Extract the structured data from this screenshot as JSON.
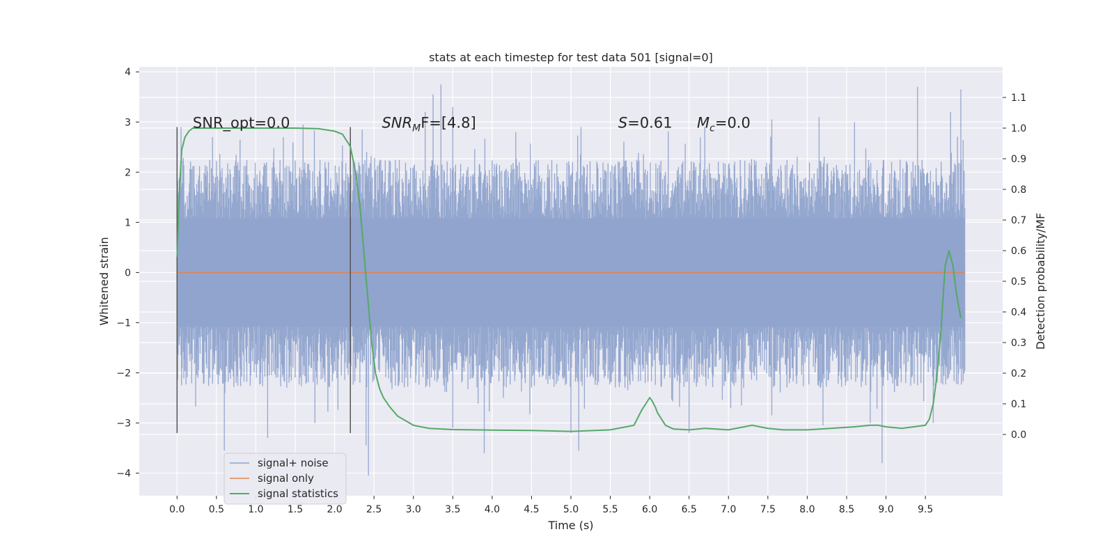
{
  "chart_data": {
    "type": "line",
    "title": "stats at each timestep for test data 501 [signal=0]",
    "xlabel": "Time (s)",
    "ylabel": "Whitened strain",
    "ylabel_right": "Detection probability/MF",
    "xlim": [
      -0.48,
      10.48
    ],
    "ylim": [
      -4.45,
      4.1
    ],
    "ylim_right": [
      -0.2,
      1.2
    ],
    "xticks": [
      "0.0",
      "0.5",
      "1.0",
      "1.5",
      "2.0",
      "2.5",
      "3.0",
      "3.5",
      "4.0",
      "4.5",
      "5.0",
      "5.5",
      "6.0",
      "6.5",
      "7.0",
      "7.5",
      "8.0",
      "8.5",
      "9.0",
      "9.5"
    ],
    "yticks": [
      "4",
      "3",
      "2",
      "1",
      "0",
      "−1",
      "−2",
      "−3",
      "−4"
    ],
    "yticks_right": [
      "1.1",
      "1.0",
      "0.9",
      "0.8",
      "0.7",
      "0.6",
      "0.5",
      "0.4",
      "0.3",
      "0.2",
      "0.1",
      "0.0"
    ],
    "grid": true,
    "legend_position": "lower-left",
    "annotations": [
      {
        "text": "SNR_opt=0.0",
        "x": 0.2,
        "y": 3.0
      },
      {
        "main": "SNR",
        "sub": "M",
        "rest": "F=[4.8]",
        "x": 2.6,
        "y": 3.0
      },
      {
        "main": "S",
        "rest": "=0.61",
        "x": 5.6,
        "y": 3.0
      },
      {
        "main": "M",
        "sub": "c",
        "rest": "=0.0",
        "x": 6.6,
        "y": 3.0
      }
    ],
    "vlines": [
      {
        "x": 0.0,
        "ymin": -3.2,
        "ymax": 2.9
      },
      {
        "x": 2.2,
        "ymin": -3.2,
        "ymax": 2.9
      }
    ],
    "series": [
      {
        "name": "signal+ noise",
        "axis": "left",
        "color": "#8fa3cc",
        "x_range": [
          0.0,
          10.0
        ],
        "y_band": [
          -4.0,
          3.75
        ],
        "peaks_high": [
          [
            0.05,
            2.9
          ],
          [
            0.45,
            2.7
          ],
          [
            0.8,
            2.65
          ],
          [
            1.6,
            2.95
          ],
          [
            2.35,
            2.85
          ],
          [
            3.15,
            3.2
          ],
          [
            3.25,
            3.55
          ],
          [
            3.35,
            3.75
          ],
          [
            3.5,
            3.3
          ],
          [
            4.3,
            2.8
          ],
          [
            6.7,
            2.9
          ],
          [
            7.55,
            3.05
          ],
          [
            8.15,
            3.1
          ],
          [
            8.6,
            3.0
          ],
          [
            9.4,
            3.7
          ],
          [
            9.82,
            3.2
          ],
          [
            9.95,
            3.65
          ]
        ],
        "peaks_low": [
          [
            0.6,
            -3.55
          ],
          [
            1.15,
            -3.3
          ],
          [
            1.75,
            -3.0
          ],
          [
            2.4,
            -3.45
          ],
          [
            2.43,
            -4.05
          ],
          [
            3.5,
            -3.1
          ],
          [
            3.9,
            -3.6
          ],
          [
            5.0,
            -3.2
          ],
          [
            5.1,
            -3.55
          ],
          [
            6.5,
            -3.2
          ],
          [
            8.2,
            -3.05
          ],
          [
            8.8,
            -3.0
          ],
          [
            8.95,
            -3.8
          ],
          [
            9.6,
            -3.0
          ]
        ]
      },
      {
        "name": "signal only",
        "axis": "left",
        "color": "#dd8452",
        "x": [
          0.0,
          10.0
        ],
        "y": [
          0.0,
          0.0
        ]
      },
      {
        "name": "signal statistics",
        "axis": "right",
        "color": "#55a868",
        "x": [
          0.0,
          0.03,
          0.06,
          0.1,
          0.15,
          0.2,
          0.3,
          0.5,
          1.0,
          1.5,
          1.8,
          2.0,
          2.1,
          2.2,
          2.27,
          2.32,
          2.37,
          2.42,
          2.47,
          2.52,
          2.57,
          2.62,
          2.7,
          2.8,
          3.0,
          3.2,
          3.5,
          4.0,
          4.5,
          5.0,
          5.5,
          5.8,
          5.9,
          5.95,
          6.0,
          6.03,
          6.07,
          6.1,
          6.2,
          6.3,
          6.5,
          6.7,
          7.0,
          7.2,
          7.3,
          7.5,
          7.7,
          8.0,
          8.3,
          8.6,
          8.8,
          8.9,
          9.0,
          9.2,
          9.5,
          9.55,
          9.6,
          9.65,
          9.7,
          9.75,
          9.8,
          9.85,
          9.9,
          9.95
        ],
        "y": [
          0.58,
          0.8,
          0.93,
          0.97,
          0.99,
          1.0,
          1.0,
          1.0,
          1.0,
          1.0,
          0.998,
          0.99,
          0.98,
          0.94,
          0.85,
          0.75,
          0.6,
          0.45,
          0.3,
          0.2,
          0.15,
          0.12,
          0.09,
          0.06,
          0.03,
          0.02,
          0.016,
          0.014,
          0.013,
          0.01,
          0.015,
          0.03,
          0.08,
          0.1,
          0.12,
          0.11,
          0.09,
          0.07,
          0.03,
          0.018,
          0.015,
          0.02,
          0.015,
          0.025,
          0.03,
          0.02,
          0.015,
          0.015,
          0.02,
          0.025,
          0.03,
          0.03,
          0.025,
          0.02,
          0.03,
          0.05,
          0.1,
          0.2,
          0.35,
          0.55,
          0.6,
          0.55,
          0.45,
          0.38
        ]
      }
    ]
  }
}
